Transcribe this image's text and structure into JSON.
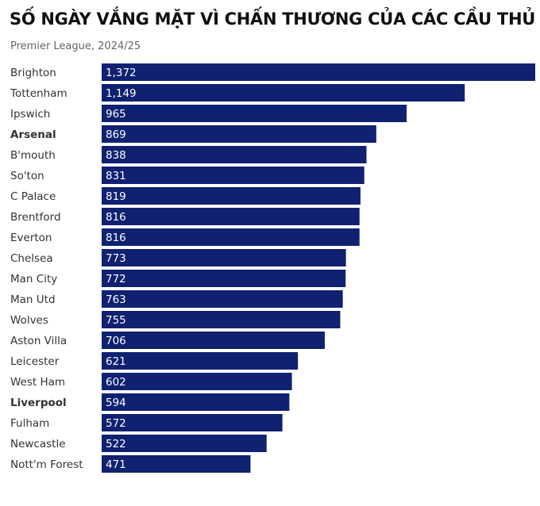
{
  "header": {
    "title": "SỐ NGÀY VẮNG MẶT VÌ CHẤN THƯƠNG CỦA CÁC CẦU THỦ",
    "subtitle": "Premier League, 2024/25"
  },
  "colors": {
    "bar": "#0f2170",
    "bar_label": "#ffffff",
    "category_label": "#333333",
    "title": "#111111",
    "subtitle": "#666666"
  },
  "chart_data": {
    "type": "bar",
    "orientation": "horizontal",
    "title": "SỐ NGÀY VẮNG MẶT VÌ CHẤN THƯƠNG CỦA CÁC CẦU THỦ",
    "subtitle": "Premier League, 2024/25",
    "categories": [
      "Brighton",
      "Tottenham",
      "Ipswich",
      "Arsenal",
      "B'mouth",
      "So'ton",
      "C Palace",
      "Brentford",
      "Everton",
      "Chelsea",
      "Man City",
      "Man Utd",
      "Wolves",
      "Aston Villa",
      "Leicester",
      "West Ham",
      "Liverpool",
      "Fulham",
      "Newcastle",
      "Nott'm Forest"
    ],
    "values": [
      1372,
      1149,
      965,
      869,
      838,
      831,
      819,
      816,
      816,
      773,
      772,
      763,
      755,
      706,
      621,
      602,
      594,
      572,
      522,
      471
    ],
    "value_labels": [
      "1,372",
      "1,149",
      "965",
      "869",
      "838",
      "831",
      "819",
      "816",
      "816",
      "773",
      "772",
      "763",
      "755",
      "706",
      "621",
      "602",
      "594",
      "572",
      "522",
      "471"
    ],
    "highlighted_categories": [
      "Arsenal",
      "Liverpool"
    ],
    "xlim": [
      0,
      1372
    ],
    "grid": false,
    "legend": "none"
  }
}
